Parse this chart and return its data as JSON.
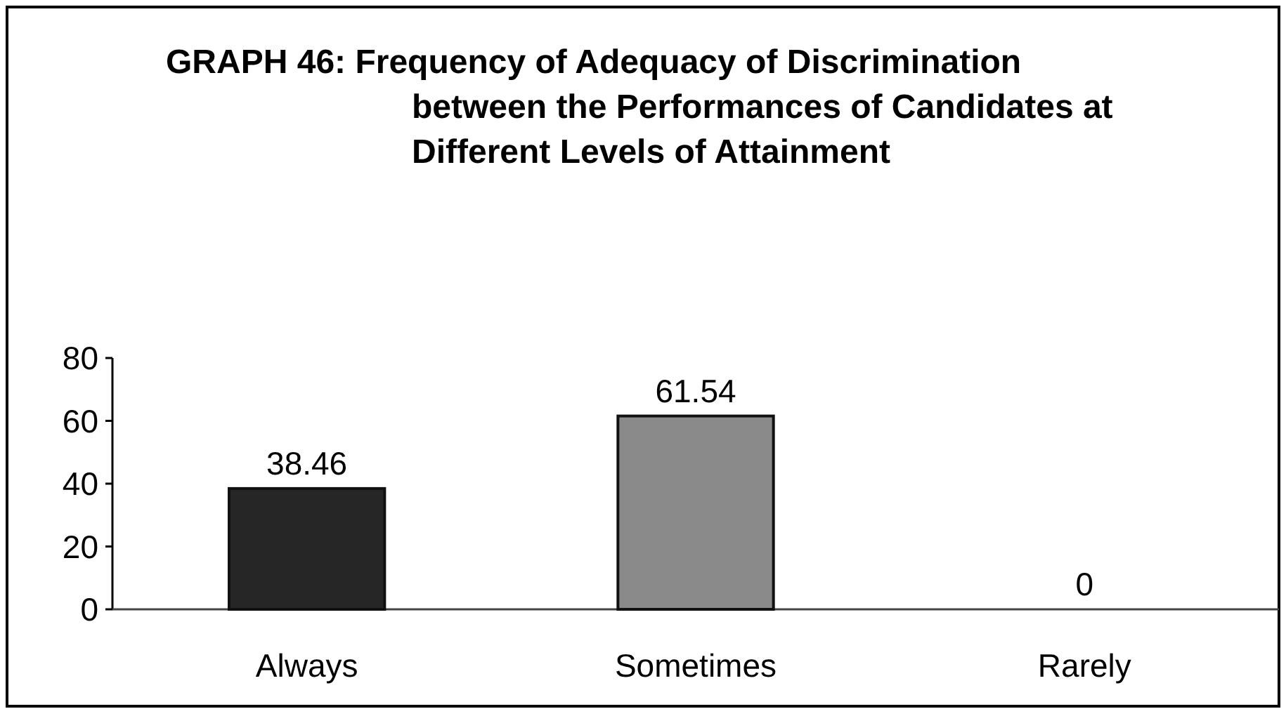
{
  "chart_data": {
    "type": "bar",
    "title": "GRAPH 46: Frequency of Adequacy of Discrimination between the Performances of Candidates at Different Levels of Attainment",
    "categories": [
      "Always",
      "Sometimes",
      "Rarely"
    ],
    "values": [
      38.46,
      61.54,
      0
    ],
    "colors": [
      "#262626",
      "#8a8a8a",
      null
    ],
    "ylim": [
      0,
      80
    ],
    "yticks": [
      0,
      20,
      40,
      60,
      80
    ],
    "data_labels": true
  }
}
